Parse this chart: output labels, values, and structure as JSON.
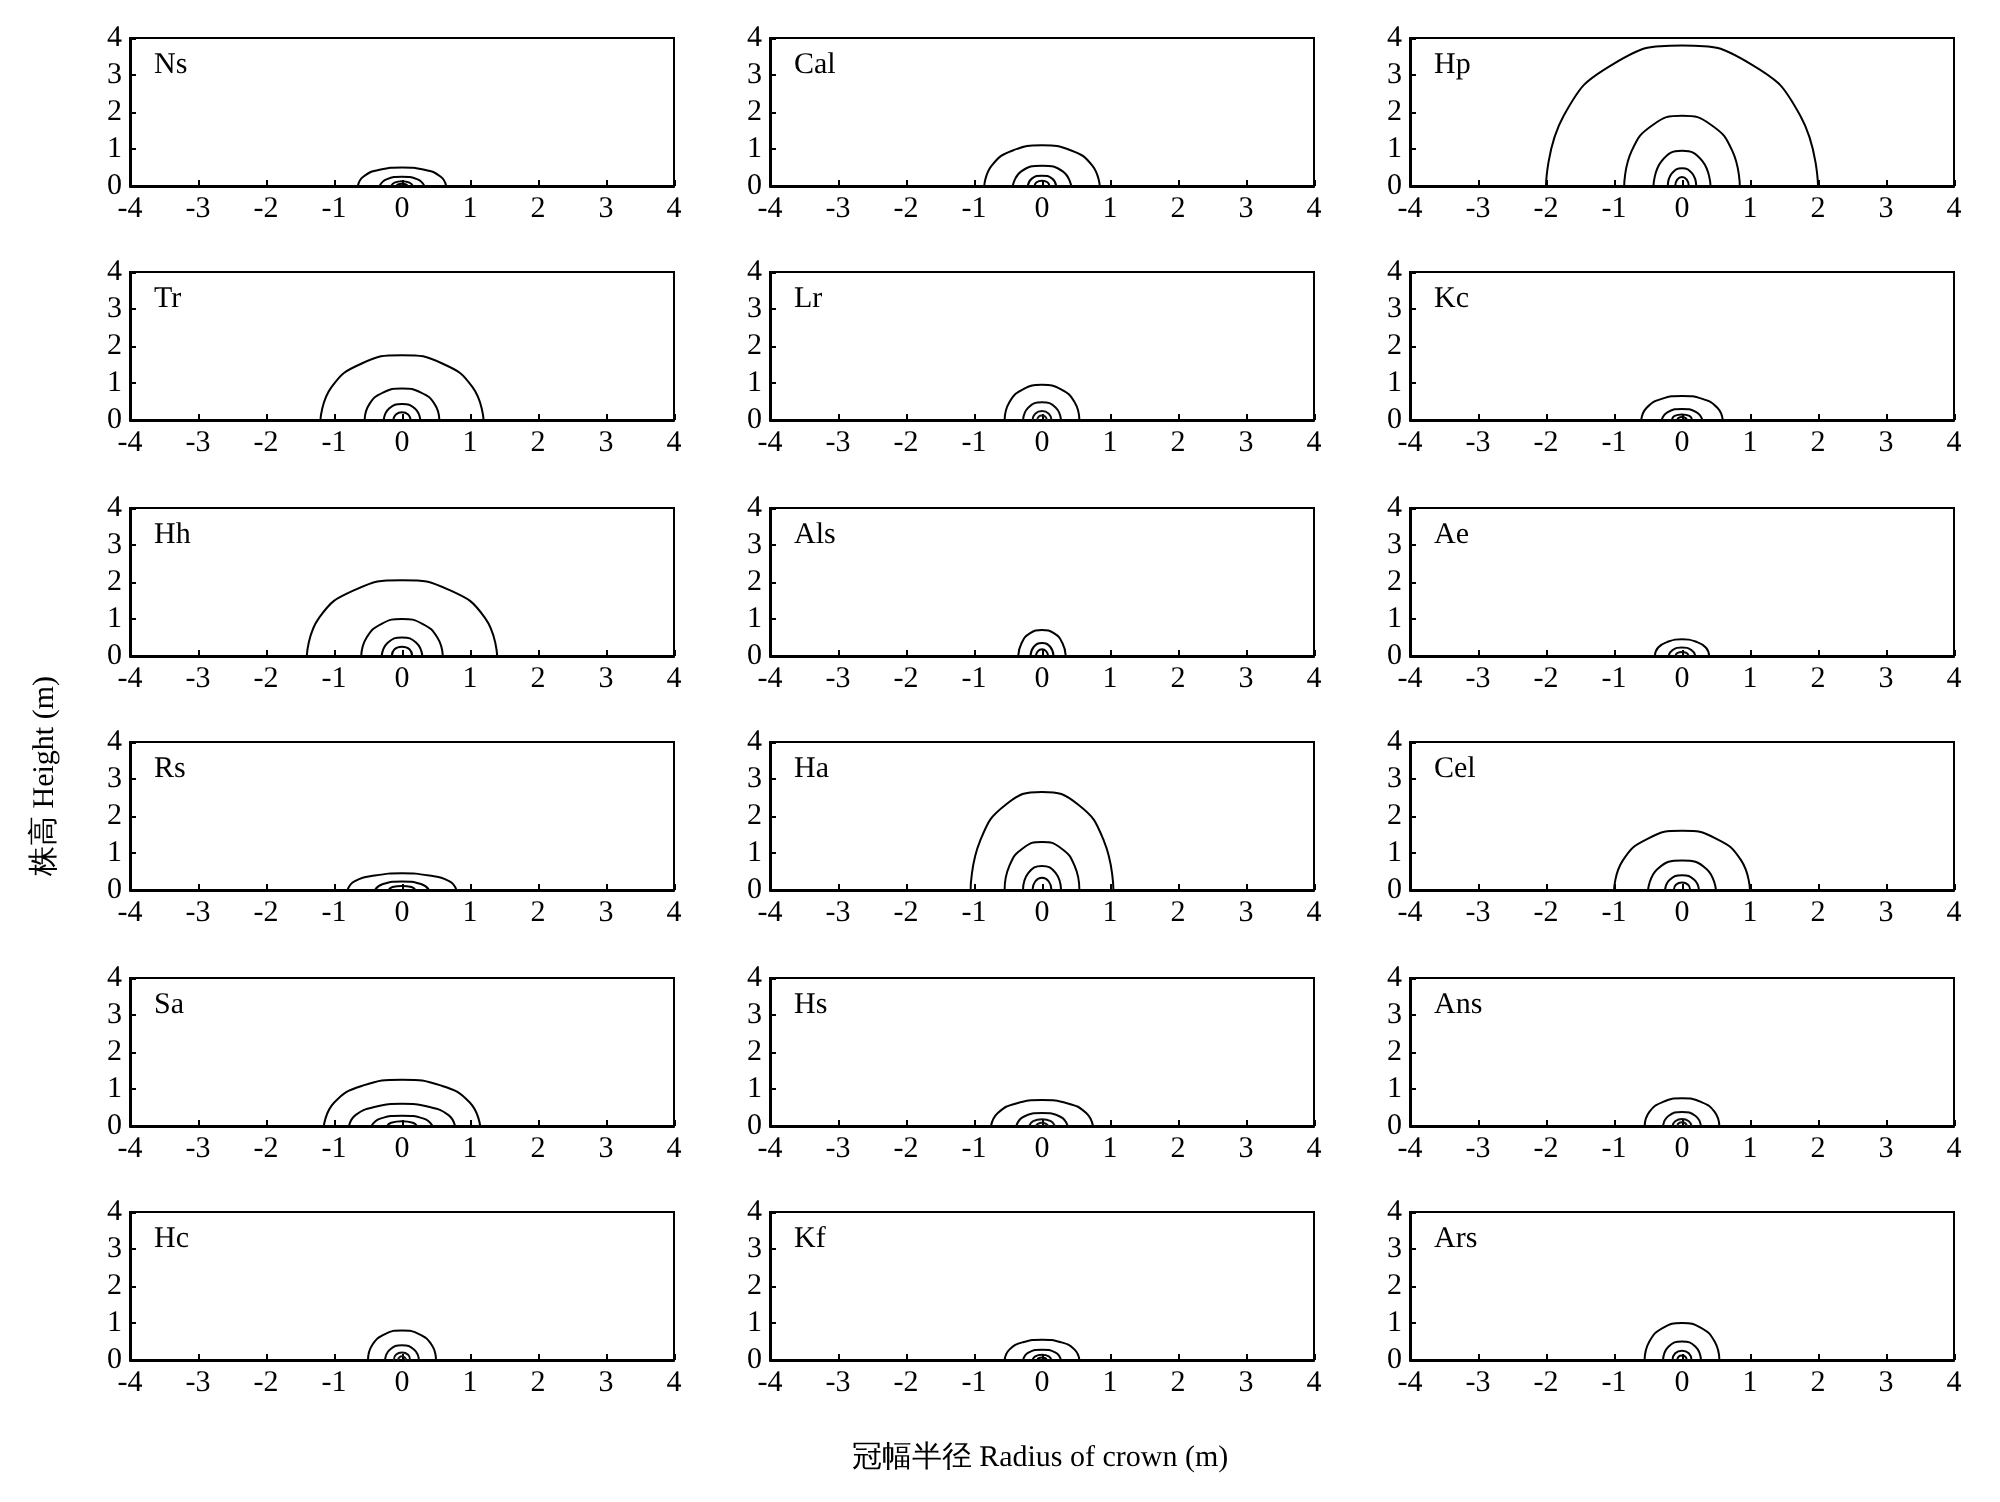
{
  "chart_data": [
    {
      "type": "line",
      "title": "Ns",
      "marker": "none",
      "xlim": [
        -4,
        4
      ],
      "ylim": [
        0,
        4
      ],
      "xticks": [
        -4,
        -3,
        -2,
        -1,
        0,
        1,
        2,
        3,
        4
      ],
      "yticks": [
        0,
        1,
        2,
        3,
        4
      ],
      "series": [
        {
          "color": "#000000",
          "x": [
            -0.65,
            -0.57,
            -0.33,
            0,
            0.33,
            0.57,
            0.65
          ],
          "values": [
            0,
            0.25,
            0.44,
            0.5,
            0.44,
            0.25,
            0
          ]
        },
        {
          "color": "#000000",
          "x": [
            -0.33,
            -0.23,
            0,
            0.23,
            0.33
          ],
          "values": [
            0,
            0.18,
            0.25,
            0.18,
            0
          ]
        },
        {
          "color": "#000000",
          "x": [
            -0.16,
            -0.11,
            0,
            0.11,
            0.16
          ],
          "values": [
            0,
            0.09,
            0.13,
            0.09,
            0
          ]
        },
        {
          "color": "#000000",
          "x": [
            -0.08,
            -0.06,
            0,
            0.06,
            0.08
          ],
          "values": [
            0,
            0.04,
            0.06,
            0.04,
            0
          ]
        }
      ]
    },
    {
      "type": "line",
      "title": "Cal",
      "marker": "none",
      "xlim": [
        -4,
        4
      ],
      "ylim": [
        0,
        4
      ],
      "xticks": [
        -4,
        -3,
        -2,
        -1,
        0,
        1,
        2,
        3,
        4
      ],
      "yticks": [
        0,
        1,
        2,
        3,
        4
      ],
      "series": [
        {
          "color": "#000000",
          "x": [
            -0.85,
            -0.74,
            -0.43,
            0,
            0.43,
            0.74,
            0.85
          ],
          "values": [
            0,
            0.55,
            0.96,
            1.1,
            0.96,
            0.55,
            0
          ]
        },
        {
          "color": "#000000",
          "x": [
            -0.43,
            -0.31,
            0,
            0.31,
            0.43
          ],
          "values": [
            0,
            0.39,
            0.55,
            0.39,
            0
          ]
        },
        {
          "color": "#000000",
          "x": [
            -0.21,
            -0.15,
            0,
            0.15,
            0.21
          ],
          "values": [
            0,
            0.2,
            0.28,
            0.2,
            0
          ]
        },
        {
          "color": "#000000",
          "x": [
            -0.11,
            -0.08,
            0,
            0.08,
            0.11
          ],
          "values": [
            0,
            0.1,
            0.14,
            0.1,
            0
          ]
        }
      ]
    },
    {
      "type": "line",
      "title": "Hp",
      "marker": "none",
      "xlim": [
        -4,
        4
      ],
      "ylim": [
        0,
        4
      ],
      "xticks": [
        -4,
        -3,
        -2,
        -1,
        0,
        1,
        2,
        3,
        4
      ],
      "yticks": [
        0,
        1,
        2,
        3,
        4
      ],
      "series": [
        {
          "color": "#000000",
          "x": [
            -2,
            -1.74,
            -1,
            0,
            1,
            1.74,
            2
          ],
          "values": [
            0,
            1.9,
            3.31,
            3.8,
            3.31,
            1.9,
            0
          ]
        },
        {
          "color": "#000000",
          "x": [
            -0.85,
            -0.74,
            -0.43,
            0,
            0.43,
            0.74,
            0.85
          ],
          "values": [
            0,
            0.95,
            1.65,
            1.9,
            1.65,
            0.95,
            0
          ]
        },
        {
          "color": "#000000",
          "x": [
            -0.42,
            -0.3,
            0,
            0.3,
            0.42
          ],
          "values": [
            0,
            0.67,
            0.95,
            0.67,
            0
          ]
        },
        {
          "color": "#000000",
          "x": [
            -0.21,
            -0.15,
            0,
            0.15,
            0.21
          ],
          "values": [
            0,
            0.34,
            0.48,
            0.34,
            0
          ]
        },
        {
          "color": "#000000",
          "x": [
            -0.1,
            -0.07,
            0,
            0.07,
            0.1
          ],
          "values": [
            0,
            0.17,
            0.24,
            0.17,
            0
          ]
        }
      ]
    },
    {
      "type": "line",
      "title": "Tr",
      "marker": "none",
      "xlim": [
        -4,
        4
      ],
      "ylim": [
        0,
        4
      ],
      "xticks": [
        -4,
        -3,
        -2,
        -1,
        0,
        1,
        2,
        3,
        4
      ],
      "yticks": [
        0,
        1,
        2,
        3,
        4
      ],
      "series": [
        {
          "color": "#000000",
          "x": [
            -1.2,
            -1.04,
            -0.6,
            0,
            0.6,
            1.04,
            1.2
          ],
          "values": [
            0,
            0.88,
            1.52,
            1.75,
            1.52,
            0.88,
            0
          ]
        },
        {
          "color": "#000000",
          "x": [
            -0.55,
            -0.48,
            -0.28,
            0,
            0.28,
            0.48,
            0.55
          ],
          "values": [
            0,
            0.43,
            0.74,
            0.85,
            0.74,
            0.43,
            0
          ]
        },
        {
          "color": "#000000",
          "x": [
            -0.27,
            -0.19,
            0,
            0.19,
            0.27
          ],
          "values": [
            0,
            0.31,
            0.43,
            0.31,
            0
          ]
        },
        {
          "color": "#000000",
          "x": [
            -0.13,
            -0.09,
            0,
            0.09,
            0.13
          ],
          "values": [
            0,
            0.15,
            0.21,
            0.15,
            0
          ]
        }
      ]
    },
    {
      "type": "line",
      "title": "Lr",
      "marker": "none",
      "xlim": [
        -4,
        4
      ],
      "ylim": [
        0,
        4
      ],
      "xticks": [
        -4,
        -3,
        -2,
        -1,
        0,
        1,
        2,
        3,
        4
      ],
      "yticks": [
        0,
        1,
        2,
        3,
        4
      ],
      "series": [
        {
          "color": "#000000",
          "x": [
            -0.55,
            -0.48,
            -0.28,
            0,
            0.28,
            0.48,
            0.55
          ],
          "values": [
            0,
            0.48,
            0.83,
            0.95,
            0.83,
            0.48,
            0
          ]
        },
        {
          "color": "#080808",
          "x": [
            -0.28,
            -0.2,
            0,
            0.2,
            0.28
          ],
          "values": [
            0,
            0.34,
            0.48,
            0.34,
            0
          ]
        },
        {
          "color": "#101010",
          "x": [
            -0.14,
            -0.1,
            0,
            0.1,
            0.14
          ],
          "values": [
            0,
            0.17,
            0.24,
            0.17,
            0
          ]
        },
        {
          "color": "#181818",
          "x": [
            -0.07,
            -0.05,
            0,
            0.05,
            0.07
          ],
          "values": [
            0,
            0.09,
            0.12,
            0.09,
            0
          ]
        }
      ]
    },
    {
      "type": "line",
      "title": "Kc",
      "marker": "none",
      "xlim": [
        -4,
        4
      ],
      "ylim": [
        0,
        4
      ],
      "xticks": [
        -4,
        -3,
        -2,
        -1,
        0,
        1,
        2,
        3,
        4
      ],
      "yticks": [
        0,
        1,
        2,
        3,
        4
      ],
      "series": [
        {
          "color": "#000000",
          "x": [
            -0.6,
            -0.52,
            -0.3,
            0,
            0.3,
            0.52,
            0.6
          ],
          "values": [
            0,
            0.33,
            0.57,
            0.65,
            0.57,
            0.33,
            0
          ]
        },
        {
          "color": "#000000",
          "x": [
            -0.3,
            -0.21,
            0,
            0.21,
            0.3
          ],
          "values": [
            0,
            0.21,
            0.3,
            0.21,
            0
          ]
        },
        {
          "color": "#000000",
          "x": [
            -0.15,
            -0.11,
            0,
            0.11,
            0.15
          ],
          "values": [
            0,
            0.11,
            0.15,
            0.11,
            0
          ]
        },
        {
          "color": "#000000",
          "x": [
            -0.07,
            -0.05,
            0,
            0.05,
            0.07
          ],
          "values": [
            0,
            0.06,
            0.08,
            0.06,
            0
          ]
        }
      ]
    },
    {
      "type": "line",
      "title": "Hh",
      "marker": "none",
      "xlim": [
        -4,
        4
      ],
      "ylim": [
        0,
        4
      ],
      "xticks": [
        -4,
        -3,
        -2,
        -1,
        0,
        1,
        2,
        3,
        4
      ],
      "yticks": [
        0,
        1,
        2,
        3,
        4
      ],
      "series": [
        {
          "color": "#000000",
          "x": [
            -1.4,
            -1.22,
            -0.7,
            0,
            0.7,
            1.22,
            1.4
          ],
          "values": [
            0,
            1.03,
            1.78,
            2.05,
            1.78,
            1.03,
            0
          ]
        },
        {
          "color": "#000000",
          "x": [
            -0.6,
            -0.52,
            -0.3,
            0,
            0.3,
            0.52,
            0.6
          ],
          "values": [
            0,
            0.5,
            0.87,
            1,
            0.87,
            0.5,
            0
          ]
        },
        {
          "color": "#000000",
          "x": [
            -0.3,
            -0.21,
            0,
            0.21,
            0.3
          ],
          "values": [
            0,
            0.36,
            0.5,
            0.36,
            0
          ]
        },
        {
          "color": "#000000",
          "x": [
            -0.15,
            -0.11,
            0,
            0.11,
            0.15
          ],
          "values": [
            0,
            0.18,
            0.25,
            0.18,
            0
          ]
        }
      ]
    },
    {
      "type": "line",
      "title": "Als",
      "marker": "none",
      "xlim": [
        -4,
        4
      ],
      "ylim": [
        0,
        4
      ],
      "xticks": [
        -4,
        -3,
        -2,
        -1,
        0,
        1,
        2,
        3,
        4
      ],
      "yticks": [
        0,
        1,
        2,
        3,
        4
      ],
      "series": [
        {
          "color": "#000000",
          "x": [
            -0.35,
            -0.3,
            -0.18,
            0,
            0.18,
            0.3,
            0.35
          ],
          "values": [
            0,
            0.35,
            0.61,
            0.7,
            0.61,
            0.35,
            0
          ]
        },
        {
          "color": "#000000",
          "x": [
            -0.17,
            -0.12,
            0,
            0.12,
            0.17
          ],
          "values": [
            0,
            0.25,
            0.35,
            0.25,
            0
          ]
        },
        {
          "color": "#000000",
          "x": [
            -0.09,
            -0.06,
            0,
            0.06,
            0.09
          ],
          "values": [
            0,
            0.13,
            0.18,
            0.13,
            0
          ]
        }
      ]
    },
    {
      "type": "line",
      "title": "Ae",
      "marker": "none",
      "xlim": [
        -4,
        4
      ],
      "ylim": [
        0,
        4
      ],
      "xticks": [
        -4,
        -3,
        -2,
        -1,
        0,
        1,
        2,
        3,
        4
      ],
      "yticks": [
        0,
        1,
        2,
        3,
        4
      ],
      "series": [
        {
          "color": "#000000",
          "x": [
            -0.4,
            -0.35,
            -0.2,
            0,
            0.2,
            0.35,
            0.4
          ],
          "values": [
            0,
            0.23,
            0.39,
            0.45,
            0.39,
            0.23,
            0
          ]
        },
        {
          "color": "#080808",
          "x": [
            -0.2,
            -0.14,
            0,
            0.14,
            0.2
          ],
          "values": [
            0,
            0.16,
            0.23,
            0.16,
            0
          ]
        },
        {
          "color": "#101010",
          "x": [
            -0.1,
            -0.07,
            0,
            0.07,
            0.1
          ],
          "values": [
            0,
            0.08,
            0.11,
            0.08,
            0
          ]
        }
      ]
    },
    {
      "type": "line",
      "title": "Rs",
      "ylabel": "株高 Height (m)",
      "marker": "none",
      "xlim": [
        -4,
        4
      ],
      "ylim": [
        0,
        4
      ],
      "xticks": [
        -4,
        -3,
        -2,
        -1,
        0,
        1,
        2,
        3,
        4
      ],
      "yticks": [
        0,
        1,
        2,
        3,
        4
      ],
      "series": [
        {
          "color": "#000000",
          "x": [
            -0.8,
            -0.7,
            -0.4,
            0,
            0.4,
            0.7,
            0.8
          ],
          "values": [
            0,
            0.23,
            0.39,
            0.45,
            0.39,
            0.23,
            0
          ]
        },
        {
          "color": "#000000",
          "x": [
            -0.4,
            -0.28,
            0,
            0.28,
            0.4
          ],
          "values": [
            0,
            0.16,
            0.23,
            0.16,
            0
          ]
        },
        {
          "color": "#000000",
          "x": [
            -0.2,
            -0.14,
            0,
            0.14,
            0.2
          ],
          "values": [
            0,
            0.08,
            0.11,
            0.08,
            0
          ]
        }
      ]
    },
    {
      "type": "line",
      "title": "Ha",
      "marker": "none",
      "xlim": [
        -4,
        4
      ],
      "ylim": [
        0,
        4
      ],
      "xticks": [
        -4,
        -3,
        -2,
        -1,
        0,
        1,
        2,
        3,
        4
      ],
      "yticks": [
        0,
        1,
        2,
        3,
        4
      ],
      "series": [
        {
          "color": "#000000",
          "x": [
            -1.05,
            -0.91,
            -0.53,
            0,
            0.53,
            0.91,
            1.05
          ],
          "values": [
            0,
            1.33,
            2.31,
            2.65,
            2.31,
            1.33,
            0
          ]
        },
        {
          "color": "#000000",
          "x": [
            -0.55,
            -0.48,
            -0.28,
            0,
            0.28,
            0.48,
            0.55
          ],
          "values": [
            0,
            0.65,
            1.13,
            1.3,
            1.13,
            0.65,
            0
          ]
        },
        {
          "color": "#000000",
          "x": [
            -0.28,
            -0.2,
            0,
            0.2,
            0.28
          ],
          "values": [
            0,
            0.46,
            0.65,
            0.46,
            0
          ]
        },
        {
          "color": "#000000",
          "x": [
            -0.14,
            -0.1,
            0,
            0.1,
            0.14
          ],
          "values": [
            0,
            0.23,
            0.33,
            0.23,
            0
          ]
        }
      ]
    },
    {
      "type": "line",
      "title": "Cel",
      "marker": "none",
      "xlim": [
        -4,
        4
      ],
      "ylim": [
        0,
        4
      ],
      "xticks": [
        -4,
        -3,
        -2,
        -1,
        0,
        1,
        2,
        3,
        4
      ],
      "yticks": [
        0,
        1,
        2,
        3,
        4
      ],
      "series": [
        {
          "color": "#000000",
          "x": [
            -1,
            -0.87,
            -0.5,
            0,
            0.5,
            0.87,
            1
          ],
          "values": [
            0,
            0.8,
            1.39,
            1.6,
            1.39,
            0.8,
            0
          ]
        },
        {
          "color": "#000000",
          "x": [
            -0.5,
            -0.36,
            0,
            0.36,
            0.5
          ],
          "values": [
            0,
            0.57,
            0.8,
            0.57,
            0
          ]
        },
        {
          "color": "#000000",
          "x": [
            -0.25,
            -0.18,
            0,
            0.18,
            0.25
          ],
          "values": [
            0,
            0.28,
            0.4,
            0.28,
            0
          ]
        },
        {
          "color": "#000000",
          "x": [
            -0.12,
            -0.09,
            0,
            0.09,
            0.12
          ],
          "values": [
            0,
            0.14,
            0.2,
            0.14,
            0
          ]
        }
      ]
    },
    {
      "type": "line",
      "title": "Sa",
      "marker": "none",
      "xlim": [
        -4,
        4
      ],
      "ylim": [
        0,
        4
      ],
      "xticks": [
        -4,
        -3,
        -2,
        -1,
        0,
        1,
        2,
        3,
        4
      ],
      "yticks": [
        0,
        1,
        2,
        3,
        4
      ],
      "series": [
        {
          "color": "#000000",
          "x": [
            -1.15,
            -1,
            -0.58,
            0,
            0.58,
            1,
            1.15
          ],
          "values": [
            0,
            0.63,
            1.09,
            1.25,
            1.09,
            0.63,
            0
          ]
        },
        {
          "color": "#000000",
          "x": [
            -0.78,
            -0.68,
            -0.39,
            0,
            0.39,
            0.68,
            0.78
          ],
          "values": [
            0,
            0.3,
            0.52,
            0.6,
            0.52,
            0.3,
            0
          ]
        },
        {
          "color": "#000000",
          "x": [
            -0.45,
            -0.32,
            0,
            0.32,
            0.45
          ],
          "values": [
            0,
            0.2,
            0.28,
            0.2,
            0
          ]
        },
        {
          "color": "#000000",
          "x": [
            -0.22,
            -0.16,
            0,
            0.16,
            0.22
          ],
          "values": [
            0,
            0.09,
            0.13,
            0.09,
            0
          ]
        }
      ]
    },
    {
      "type": "line",
      "title": "Hs",
      "marker": "none",
      "xlim": [
        -4,
        4
      ],
      "ylim": [
        0,
        4
      ],
      "xticks": [
        -4,
        -3,
        -2,
        -1,
        0,
        1,
        2,
        3,
        4
      ],
      "yticks": [
        0,
        1,
        2,
        3,
        4
      ],
      "series": [
        {
          "color": "#000000",
          "x": [
            -0.75,
            -0.65,
            -0.38,
            0,
            0.38,
            0.65,
            0.75
          ],
          "values": [
            0,
            0.35,
            0.61,
            0.7,
            0.61,
            0.35,
            0
          ]
        },
        {
          "color": "#080808",
          "x": [
            -0.38,
            -0.27,
            0,
            0.27,
            0.38
          ],
          "values": [
            0,
            0.25,
            0.35,
            0.25,
            0
          ]
        },
        {
          "color": "#101010",
          "x": [
            -0.19,
            -0.13,
            0,
            0.13,
            0.19
          ],
          "values": [
            0,
            0.13,
            0.18,
            0.13,
            0
          ]
        },
        {
          "color": "#181818",
          "x": [
            -0.09,
            -0.06,
            0,
            0.06,
            0.09
          ],
          "values": [
            0,
            0.06,
            0.09,
            0.06,
            0
          ]
        }
      ]
    },
    {
      "type": "line",
      "title": "Ans",
      "marker": "none",
      "xlim": [
        -4,
        4
      ],
      "ylim": [
        0,
        4
      ],
      "xticks": [
        -4,
        -3,
        -2,
        -1,
        0,
        1,
        2,
        3,
        4
      ],
      "yticks": [
        0,
        1,
        2,
        3,
        4
      ],
      "series": [
        {
          "color": "#000000",
          "x": [
            -0.55,
            -0.48,
            -0.28,
            0,
            0.28,
            0.48,
            0.55
          ],
          "values": [
            0,
            0.38,
            0.65,
            0.75,
            0.65,
            0.38,
            0
          ]
        },
        {
          "color": "#080808",
          "x": [
            -0.28,
            -0.2,
            0,
            0.2,
            0.28
          ],
          "values": [
            0,
            0.27,
            0.38,
            0.27,
            0
          ]
        },
        {
          "color": "#101010",
          "x": [
            -0.14,
            -0.1,
            0,
            0.1,
            0.14
          ],
          "values": [
            0,
            0.13,
            0.19,
            0.13,
            0
          ]
        },
        {
          "color": "#181818",
          "x": [
            -0.07,
            -0.05,
            0,
            0.05,
            0.07
          ],
          "values": [
            0,
            0.07,
            0.1,
            0.07,
            0
          ]
        }
      ]
    },
    {
      "type": "line",
      "title": "Hc",
      "marker": "none",
      "xlim": [
        -4,
        4
      ],
      "ylim": [
        0,
        4
      ],
      "xticks": [
        -4,
        -3,
        -2,
        -1,
        0,
        1,
        2,
        3,
        4
      ],
      "yticks": [
        0,
        1,
        2,
        3,
        4
      ],
      "series": [
        {
          "color": "#000000",
          "x": [
            -0.5,
            -0.44,
            -0.25,
            0,
            0.25,
            0.44,
            0.5
          ],
          "values": [
            0,
            0.4,
            0.7,
            0.8,
            0.7,
            0.4,
            0
          ]
        },
        {
          "color": "#080808",
          "x": [
            -0.25,
            -0.18,
            0,
            0.18,
            0.25
          ],
          "values": [
            0,
            0.28,
            0.4,
            0.28,
            0
          ]
        },
        {
          "color": "#101010",
          "x": [
            -0.12,
            -0.09,
            0,
            0.09,
            0.12
          ],
          "values": [
            0,
            0.14,
            0.2,
            0.14,
            0
          ]
        },
        {
          "color": "#181818",
          "x": [
            -0.06,
            -0.04,
            0,
            0.04,
            0.06
          ],
          "values": [
            0,
            0.07,
            0.1,
            0.07,
            0
          ]
        }
      ]
    },
    {
      "type": "line",
      "title": "Kf",
      "xlabel": "冠幅半径  Radius of crown (m)",
      "marker": "none",
      "xlim": [
        -4,
        4
      ],
      "ylim": [
        0,
        4
      ],
      "xticks": [
        -4,
        -3,
        -2,
        -1,
        0,
        1,
        2,
        3,
        4
      ],
      "yticks": [
        0,
        1,
        2,
        3,
        4
      ],
      "series": [
        {
          "color": "#000000",
          "x": [
            -0.55,
            -0.48,
            -0.28,
            0,
            0.28,
            0.48,
            0.55
          ],
          "values": [
            0,
            0.28,
            0.48,
            0.55,
            0.48,
            0.28,
            0
          ]
        },
        {
          "color": "#000000",
          "x": [
            -0.28,
            -0.2,
            0,
            0.2,
            0.28
          ],
          "values": [
            0,
            0.2,
            0.28,
            0.2,
            0
          ]
        },
        {
          "color": "#000000",
          "x": [
            -0.14,
            -0.1,
            0,
            0.1,
            0.14
          ],
          "values": [
            0,
            0.1,
            0.14,
            0.1,
            0
          ]
        },
        {
          "color": "#000000",
          "x": [
            -0.07,
            -0.05,
            0,
            0.05,
            0.07
          ],
          "values": [
            0,
            0.05,
            0.07,
            0.05,
            0
          ]
        }
      ]
    },
    {
      "type": "line",
      "title": "Ars",
      "marker": "none",
      "xlim": [
        -4,
        4
      ],
      "ylim": [
        0,
        4
      ],
      "xticks": [
        -4,
        -3,
        -2,
        -1,
        0,
        1,
        2,
        3,
        4
      ],
      "yticks": [
        0,
        1,
        2,
        3,
        4
      ],
      "series": [
        {
          "color": "#000000",
          "x": [
            -0.55,
            -0.48,
            -0.28,
            0,
            0.28,
            0.48,
            0.55
          ],
          "values": [
            0,
            0.5,
            0.87,
            1,
            0.87,
            0.5,
            0
          ]
        },
        {
          "color": "#000000",
          "x": [
            -0.28,
            -0.2,
            0,
            0.2,
            0.28
          ],
          "values": [
            0,
            0.36,
            0.5,
            0.36,
            0
          ]
        },
        {
          "color": "#000000",
          "x": [
            -0.14,
            -0.1,
            0,
            0.1,
            0.14
          ],
          "values": [
            0,
            0.18,
            0.25,
            0.18,
            0
          ]
        },
        {
          "color": "#000000",
          "x": [
            -0.07,
            -0.05,
            0,
            0.05,
            0.07
          ],
          "values": [
            0,
            0.09,
            0.12,
            0.09,
            0
          ]
        }
      ]
    }
  ]
}
